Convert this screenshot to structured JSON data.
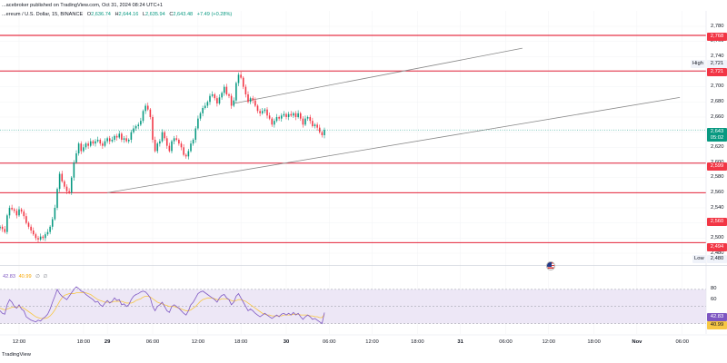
{
  "header": {
    "publisher": "...acebroker published on TradingView.com, Oct 31, 2024 08:24 UTC+1",
    "symbol": "...ereum / U.S. Dollar, 15, BINANCE",
    "open_label": "O",
    "open": "2,636.74",
    "high_label": "H",
    "high": "2,644.16",
    "low_label": "L",
    "low": "2,635.94",
    "close_label": "C",
    "close": "2,643.48",
    "change": "+7.49 (+0.28%)"
  },
  "colors": {
    "up": "#089981",
    "down": "#f23645",
    "level_line": "#e0001a",
    "trend_line": "#888888",
    "rsi_line": "#7e57c2",
    "rsi_ma": "#f7c744",
    "rsi_band": "#ede7f6"
  },
  "price_axis": {
    "ticks": [
      "2,780",
      "2,760",
      "2,740",
      "2,720",
      "2,700",
      "2,680",
      "2,660",
      "2,640",
      "2,620",
      "2,600",
      "2,580",
      "2,560",
      "2,540",
      "2,520",
      "2,500",
      "2,480"
    ],
    "high_label": "High",
    "high_value": "2,721",
    "low_label": "Low",
    "low_value": "2,480"
  },
  "levels": [
    {
      "name": "level-2768",
      "tag": "2,768"
    },
    {
      "name": "level-2721",
      "tag": "2,721"
    },
    {
      "name": "level-2599",
      "tag": "2,599"
    },
    {
      "name": "level-2560",
      "tag": "2,560"
    },
    {
      "name": "level-2494",
      "tag": "2,494"
    }
  ],
  "current_price": {
    "value": "2,643",
    "countdown": "05:02"
  },
  "rsi": {
    "legend_rsi": "42.83",
    "legend_ma": "40.99",
    "legend_extra": "∅ ∅",
    "axis_ticks": [
      "80",
      "60",
      "40"
    ],
    "value_tag": "42.83",
    "ma_tag": "40.99"
  },
  "time_axis": {
    "labels": [
      "12:00",
      "18:00",
      "29",
      "06:00",
      "12:00",
      "18:00",
      "30",
      "06:00",
      "12:00",
      "18:00",
      "31",
      "06:00",
      "12:00",
      "18:00",
      "Nov",
      "06:00"
    ]
  },
  "footer": {
    "brand": "TradingView"
  },
  "chart_data": {
    "type": "candlestick",
    "title": "Ethereum / U.S. Dollar, 15, BINANCE",
    "ylim": [
      2474,
      2786
    ],
    "rsi_ylim": [
      20,
      90
    ],
    "xlim": [
      0,
      296
    ],
    "x_ticks": [
      8,
      35,
      45,
      64,
      83,
      101,
      120,
      138,
      156,
      175,
      193,
      212,
      230,
      249,
      267,
      286
    ],
    "horizontal_levels": [
      2768,
      2721,
      2599,
      2560,
      2494
    ],
    "trend_lines": [
      {
        "x1": 98,
        "y1": 2678,
        "x2": 219,
        "y2": 2751
      },
      {
        "x1": 45,
        "y1": 2560,
        "x2": 285,
        "y2": 2686
      }
    ],
    "close_series": [
      2515,
      2512,
      2508,
      2530,
      2540,
      2538,
      2536,
      2530,
      2538,
      2535,
      2529,
      2520,
      2515,
      2510,
      2505,
      2500,
      2498,
      2502,
      2500,
      2505,
      2508,
      2515,
      2525,
      2540,
      2565,
      2585,
      2575,
      2568,
      2562,
      2560,
      2580,
      2600,
      2612,
      2625,
      2615,
      2620,
      2625,
      2622,
      2628,
      2625,
      2628,
      2630,
      2625,
      2622,
      2628,
      2632,
      2628,
      2630,
      2635,
      2633,
      2638,
      2630,
      2632,
      2628,
      2630,
      2640,
      2645,
      2648,
      2650,
      2655,
      2668,
      2675,
      2670,
      2660,
      2630,
      2615,
      2625,
      2628,
      2640,
      2632,
      2622,
      2615,
      2628,
      2632,
      2630,
      2625,
      2620,
      2610,
      2608,
      2615,
      2625,
      2630,
      2645,
      2658,
      2665,
      2672,
      2675,
      2680,
      2688,
      2690,
      2685,
      2678,
      2686,
      2692,
      2700,
      2690,
      2688,
      2675,
      2682,
      2705,
      2716,
      2712,
      2700,
      2690,
      2680,
      2685,
      2682,
      2675,
      2668,
      2665,
      2668,
      2670,
      2662,
      2658,
      2650,
      2655,
      2660,
      2658,
      2662,
      2664,
      2660,
      2664,
      2662,
      2665,
      2660,
      2665,
      2658,
      2650,
      2658,
      2660,
      2655,
      2648,
      2650,
      2646,
      2640,
      2636,
      2643
    ],
    "rsi_series": [
      45,
      42,
      41,
      52,
      58,
      55,
      50,
      48,
      52,
      47,
      45,
      38,
      36,
      34,
      33,
      32,
      34,
      33,
      36,
      38,
      41,
      47,
      55,
      62,
      70,
      65,
      62,
      60,
      58,
      62,
      66,
      70,
      73,
      71,
      68,
      67,
      64,
      62,
      60,
      58,
      55,
      56,
      52,
      50,
      54,
      57,
      54,
      56,
      60,
      57,
      58,
      52,
      53,
      50,
      52,
      58,
      62,
      64,
      65,
      67,
      68,
      67,
      64,
      60,
      50,
      45,
      50,
      52,
      55,
      50,
      45,
      43,
      50,
      52,
      50,
      48,
      45,
      42,
      40,
      45,
      52,
      55,
      60,
      65,
      67,
      68,
      66,
      64,
      62,
      60,
      58,
      55,
      60,
      63,
      64,
      60,
      58,
      52,
      55,
      62,
      65,
      60,
      55,
      50,
      45,
      47,
      45,
      42,
      40,
      38,
      40,
      42,
      40,
      38,
      36,
      38,
      40,
      38,
      41,
      42,
      40,
      42,
      40,
      43,
      40,
      42,
      38,
      35,
      38,
      40,
      38,
      35,
      36,
      34,
      32,
      30,
      42.83
    ],
    "rsi_ma_series": [
      48,
      47,
      46,
      47,
      48,
      49,
      49,
      49,
      50,
      49,
      48,
      46,
      44,
      42,
      40,
      38,
      37,
      36,
      36,
      36,
      37,
      39,
      42,
      46,
      51,
      56,
      60,
      63,
      64,
      65,
      65,
      65,
      66,
      66,
      66,
      66,
      66,
      65,
      64,
      62,
      60,
      58,
      57,
      56,
      55,
      55,
      55,
      55,
      56,
      56,
      56,
      56,
      55,
      54,
      54,
      54,
      55,
      57,
      58,
      59,
      61,
      62,
      62,
      61,
      59,
      57,
      55,
      54,
      53,
      52,
      51,
      50,
      50,
      50,
      49,
      48,
      47,
      46,
      45,
      45,
      46,
      48,
      50,
      53,
      56,
      58,
      59,
      60,
      60,
      60,
      59,
      58,
      58,
      59,
      59,
      59,
      58,
      57,
      56,
      57,
      58,
      58,
      57,
      56,
      54,
      52,
      50,
      48,
      46,
      44,
      42,
      41,
      40,
      40,
      39,
      39,
      39,
      39,
      39,
      40,
      40,
      40,
      40,
      41,
      41,
      41,
      40,
      40,
      40,
      40,
      39,
      39,
      38,
      38,
      37,
      37,
      40.99
    ]
  }
}
